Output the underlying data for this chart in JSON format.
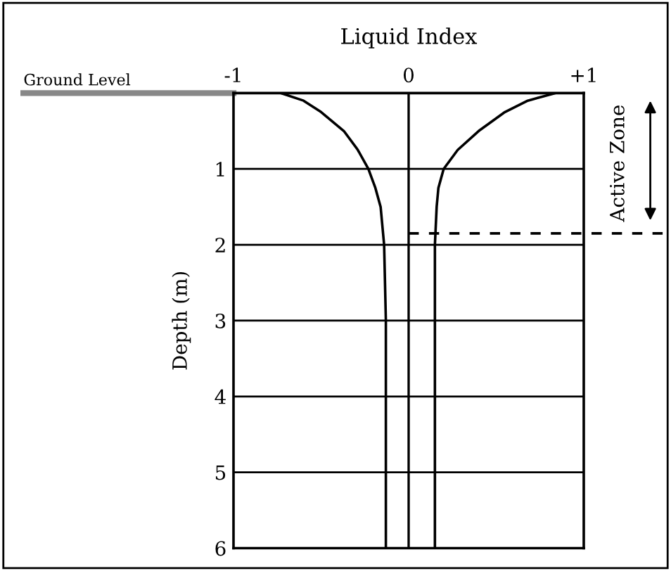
{
  "chart_data": {
    "type": "line",
    "xlabel": "Liquid Index",
    "ylabel": "Depth (m)",
    "xlim": [
      -1,
      1
    ],
    "ylim": [
      6,
      0
    ],
    "xticks": [
      -1,
      0,
      {
        "value": 1,
        "label": "+1"
      }
    ],
    "yticks": [
      {
        "value": 0,
        "label": null
      },
      1,
      2,
      3,
      4,
      5,
      6
    ],
    "grid": "y",
    "legend": false,
    "marker": "none",
    "line_style": "solid",
    "series": [
      {
        "color": "#000000",
        "x": [
          -0.73,
          -0.6,
          -0.5,
          -0.37,
          -0.29,
          -0.23,
          -0.19,
          -0.16,
          -0.14,
          -0.13,
          -0.13
        ],
        "values": [
          0,
          0.1,
          0.25,
          0.5,
          0.75,
          1,
          1.25,
          1.5,
          2,
          3,
          6
        ]
      },
      {
        "color": "#000000",
        "x": [
          0.84,
          0.68,
          0.55,
          0.4,
          0.28,
          0.2,
          0.17,
          0.16,
          0.15,
          0.15,
          0.15
        ],
        "values": [
          0,
          0.1,
          0.25,
          0.5,
          0.75,
          1,
          1.25,
          1.5,
          2,
          3,
          6
        ]
      }
    ],
    "ref_lines": [
      {
        "axis": "x",
        "value": 0,
        "color": "#000000",
        "line_style": "solid"
      },
      {
        "axis": "y",
        "value": 1.85,
        "color": "#000000",
        "line_style": "dashed",
        "label": "Active Zone"
      }
    ],
    "annotations": [
      "Ground Level"
    ]
  }
}
